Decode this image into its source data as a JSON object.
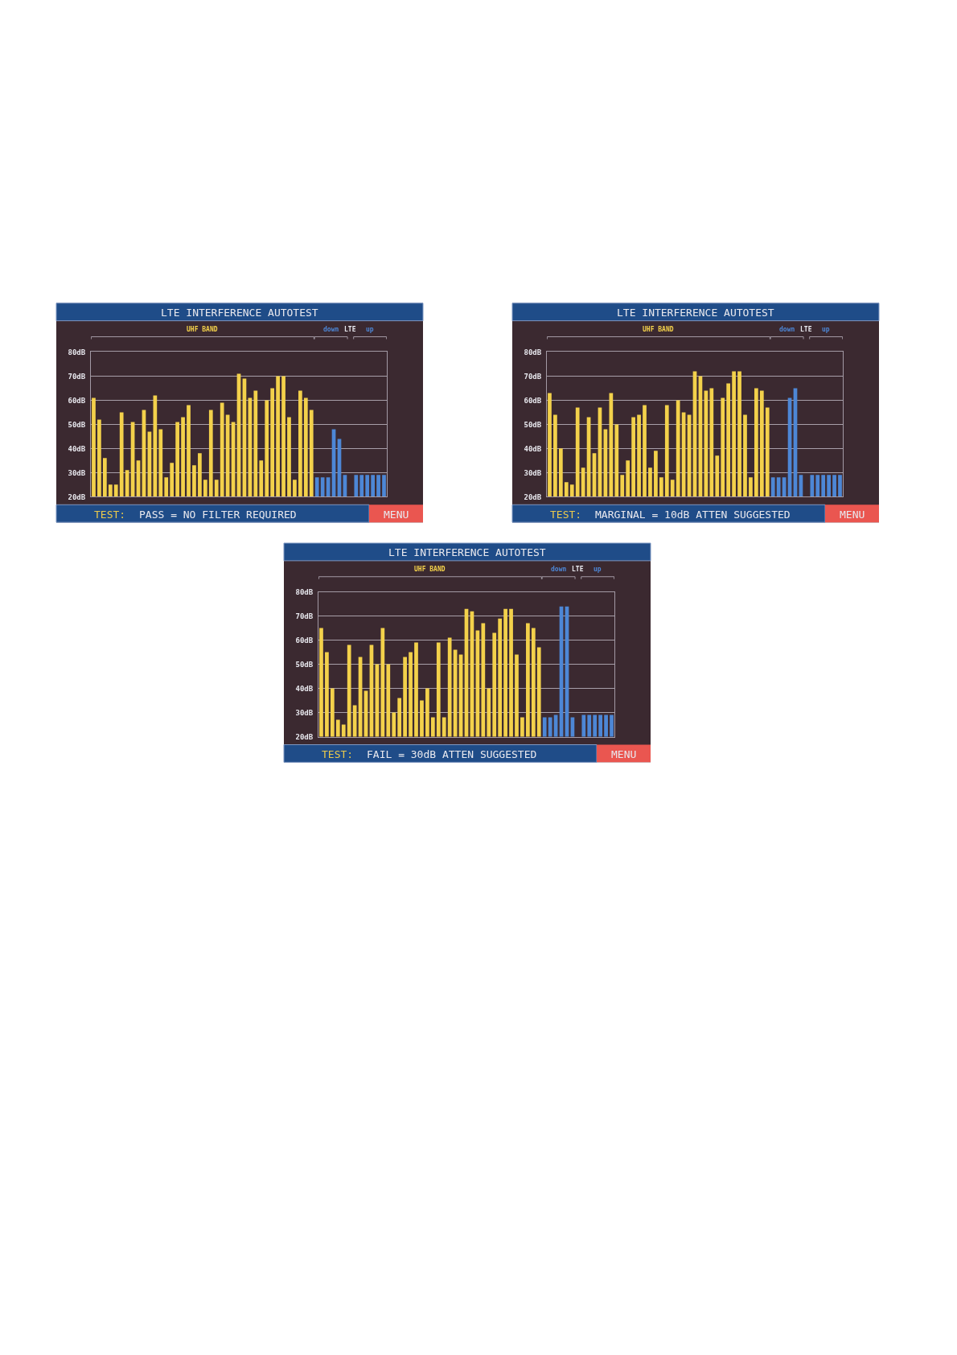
{
  "chart_data": [
    {
      "type": "bar",
      "title": "LTE INTERFERENCE AUTOTEST",
      "categories": [
        null,
        null,
        null,
        null,
        null,
        null,
        null,
        null,
        null,
        null,
        null,
        null,
        null,
        null,
        null,
        null,
        null,
        null,
        null,
        null,
        null,
        null,
        null,
        null,
        null,
        null,
        null,
        null,
        null,
        null,
        null,
        null,
        null,
        null,
        null,
        null,
        null,
        null,
        null,
        null,
        null,
        null,
        null,
        null,
        null,
        null,
        null,
        null,
        null,
        null,
        null,
        null,
        null
      ],
      "series": [
        {
          "name": "UHF BAND",
          "color": "#f3d14b",
          "values": [
            61,
            52,
            36,
            25,
            25,
            55,
            31,
            51,
            35,
            56,
            47,
            62,
            48,
            28,
            34,
            51,
            53,
            58,
            33,
            38,
            27,
            56,
            27,
            59,
            54,
            51,
            71,
            69,
            61,
            64,
            35,
            60,
            65,
            70,
            70,
            53,
            27,
            64,
            61,
            56,
            null,
            null,
            null,
            null,
            null,
            null,
            null,
            null,
            null,
            null,
            null,
            null,
            null
          ]
        },
        {
          "name": "down",
          "color": "#4d87d6",
          "values": [
            null,
            null,
            null,
            null,
            null,
            null,
            null,
            null,
            null,
            null,
            null,
            null,
            null,
            null,
            null,
            null,
            null,
            null,
            null,
            null,
            null,
            null,
            null,
            null,
            null,
            null,
            null,
            null,
            null,
            null,
            null,
            null,
            null,
            null,
            null,
            null,
            null,
            null,
            null,
            null,
            28,
            28,
            28,
            48,
            44,
            29,
            null,
            null,
            null,
            null,
            null,
            null,
            null
          ]
        },
        {
          "name": "up",
          "color": "#4d87d6",
          "values": [
            null,
            null,
            null,
            null,
            null,
            null,
            null,
            null,
            null,
            null,
            null,
            null,
            null,
            null,
            null,
            null,
            null,
            null,
            null,
            null,
            null,
            null,
            null,
            null,
            null,
            null,
            null,
            null,
            null,
            null,
            null,
            null,
            null,
            null,
            null,
            null,
            null,
            null,
            null,
            null,
            null,
            null,
            null,
            null,
            null,
            null,
            null,
            29,
            29,
            29,
            29,
            29,
            29
          ]
        }
      ],
      "ylim": [
        20,
        80
      ],
      "yticks": [
        {
          "value": 20,
          "label": "20dB"
        },
        {
          "value": 30,
          "label": "30dB"
        },
        {
          "value": 40,
          "label": "40dB"
        },
        {
          "value": 50,
          "label": "50dB"
        },
        {
          "value": 60,
          "label": "60dB"
        },
        {
          "value": 70,
          "label": "70dB"
        },
        {
          "value": 80,
          "label": "80dB"
        }
      ],
      "grid": "y",
      "tick_labels": "y",
      "annotations": [
        "LTE",
        "TEST:",
        "PASS = NO FILTER REQUIRED",
        "MENU"
      ]
    },
    {
      "type": "bar",
      "title": "LTE INTERFERENCE AUTOTEST",
      "categories": [
        null,
        null,
        null,
        null,
        null,
        null,
        null,
        null,
        null,
        null,
        null,
        null,
        null,
        null,
        null,
        null,
        null,
        null,
        null,
        null,
        null,
        null,
        null,
        null,
        null,
        null,
        null,
        null,
        null,
        null,
        null,
        null,
        null,
        null,
        null,
        null,
        null,
        null,
        null,
        null,
        null,
        null,
        null,
        null,
        null,
        null,
        null,
        null,
        null,
        null,
        null,
        null,
        null
      ],
      "series": [
        {
          "name": "UHF BAND",
          "color": "#f3d14b",
          "values": [
            63,
            54,
            40,
            26,
            25,
            57,
            32,
            53,
            38,
            57,
            48,
            63,
            50,
            29,
            35,
            53,
            54,
            58,
            32,
            39,
            28,
            58,
            27,
            60,
            55,
            54,
            72,
            70,
            64,
            65,
            37,
            61,
            67,
            72,
            72,
            54,
            28,
            65,
            64,
            57,
            null,
            null,
            null,
            null,
            null,
            null,
            null,
            null,
            null,
            null,
            null,
            null,
            null
          ]
        },
        {
          "name": "down",
          "color": "#4d87d6",
          "values": [
            null,
            null,
            null,
            null,
            null,
            null,
            null,
            null,
            null,
            null,
            null,
            null,
            null,
            null,
            null,
            null,
            null,
            null,
            null,
            null,
            null,
            null,
            null,
            null,
            null,
            null,
            null,
            null,
            null,
            null,
            null,
            null,
            null,
            null,
            null,
            null,
            null,
            null,
            null,
            null,
            28,
            28,
            28,
            61,
            65,
            29,
            null,
            null,
            null,
            null,
            null,
            null,
            null
          ]
        },
        {
          "name": "up",
          "color": "#4d87d6",
          "values": [
            null,
            null,
            null,
            null,
            null,
            null,
            null,
            null,
            null,
            null,
            null,
            null,
            null,
            null,
            null,
            null,
            null,
            null,
            null,
            null,
            null,
            null,
            null,
            null,
            null,
            null,
            null,
            null,
            null,
            null,
            null,
            null,
            null,
            null,
            null,
            null,
            null,
            null,
            null,
            null,
            null,
            null,
            null,
            null,
            null,
            null,
            null,
            29,
            29,
            29,
            29,
            29,
            29
          ]
        }
      ],
      "ylim": [
        20,
        80
      ],
      "yticks": [
        {
          "value": 20,
          "label": "20dB"
        },
        {
          "value": 30,
          "label": "30dB"
        },
        {
          "value": 40,
          "label": "40dB"
        },
        {
          "value": 50,
          "label": "50dB"
        },
        {
          "value": 60,
          "label": "60dB"
        },
        {
          "value": 70,
          "label": "70dB"
        },
        {
          "value": 80,
          "label": "80dB"
        }
      ],
      "grid": "y",
      "tick_labels": "y",
      "annotations": [
        "LTE",
        "TEST:",
        "MARGINAL = 10dB ATTEN SUGGESTED",
        "MENU"
      ]
    },
    {
      "type": "bar",
      "title": "LTE INTERFERENCE AUTOTEST",
      "categories": [
        null,
        null,
        null,
        null,
        null,
        null,
        null,
        null,
        null,
        null,
        null,
        null,
        null,
        null,
        null,
        null,
        null,
        null,
        null,
        null,
        null,
        null,
        null,
        null,
        null,
        null,
        null,
        null,
        null,
        null,
        null,
        null,
        null,
        null,
        null,
        null,
        null,
        null,
        null,
        null,
        null,
        null,
        null,
        null,
        null,
        null,
        null,
        null,
        null,
        null,
        null,
        null,
        null
      ],
      "series": [
        {
          "name": "UHF BAND",
          "color": "#f3d14b",
          "values": [
            65,
            55,
            40,
            27,
            25,
            58,
            33,
            53,
            39,
            58,
            50,
            65,
            50,
            30,
            36,
            53,
            55,
            59,
            35,
            40,
            28,
            59,
            28,
            61,
            56,
            54,
            73,
            72,
            64,
            67,
            40,
            63,
            69,
            73,
            73,
            54,
            28,
            67,
            65,
            57,
            null,
            null,
            null,
            null,
            null,
            null,
            null,
            null,
            null,
            null,
            null,
            null,
            null
          ]
        },
        {
          "name": "down",
          "color": "#4d87d6",
          "values": [
            null,
            null,
            null,
            null,
            null,
            null,
            null,
            null,
            null,
            null,
            null,
            null,
            null,
            null,
            null,
            null,
            null,
            null,
            null,
            null,
            null,
            null,
            null,
            null,
            null,
            null,
            null,
            null,
            null,
            null,
            null,
            null,
            null,
            null,
            null,
            null,
            null,
            null,
            null,
            null,
            28,
            28,
            29,
            74,
            74,
            28,
            null,
            null,
            null,
            null,
            null,
            null,
            null
          ]
        },
        {
          "name": "up",
          "color": "#4d87d6",
          "values": [
            null,
            null,
            null,
            null,
            null,
            null,
            null,
            null,
            null,
            null,
            null,
            null,
            null,
            null,
            null,
            null,
            null,
            null,
            null,
            null,
            null,
            null,
            null,
            null,
            null,
            null,
            null,
            null,
            null,
            null,
            null,
            null,
            null,
            null,
            null,
            null,
            null,
            null,
            null,
            null,
            null,
            null,
            null,
            null,
            null,
            null,
            null,
            29,
            29,
            29,
            29,
            29,
            29
          ]
        }
      ],
      "ylim": [
        20,
        80
      ],
      "yticks": [
        {
          "value": 20,
          "label": "20dB"
        },
        {
          "value": 30,
          "label": "30dB"
        },
        {
          "value": 40,
          "label": "40dB"
        },
        {
          "value": 50,
          "label": "50dB"
        },
        {
          "value": 60,
          "label": "60dB"
        },
        {
          "value": 70,
          "label": "70dB"
        },
        {
          "value": 80,
          "label": "80dB"
        }
      ],
      "grid": "y",
      "tick_labels": "y",
      "annotations": [
        "LTE",
        "TEST:",
        "FAIL = 30dB ATTEN SUGGESTED",
        "MENU"
      ]
    }
  ]
}
